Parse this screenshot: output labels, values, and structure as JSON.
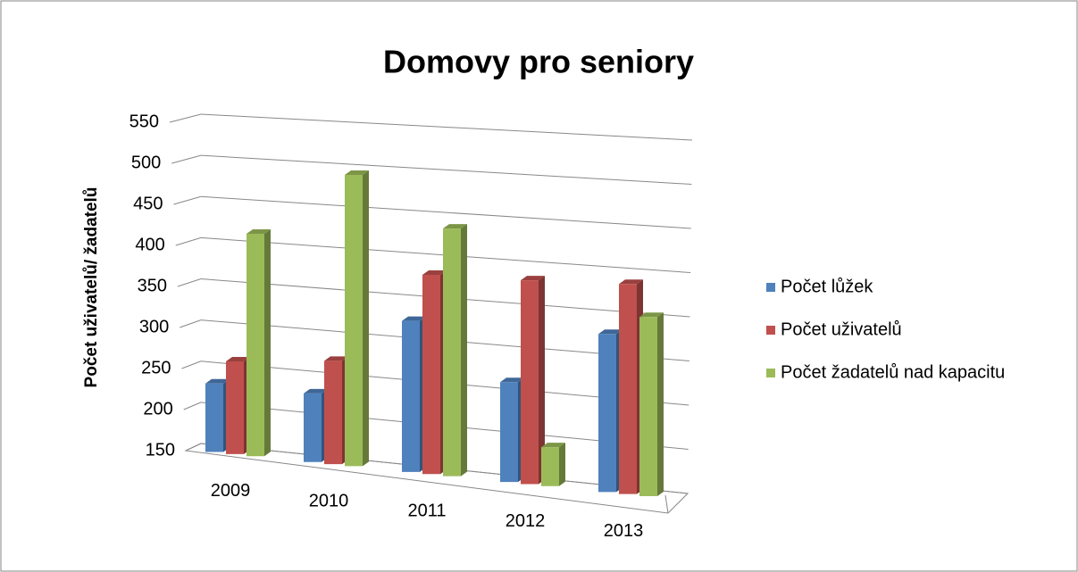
{
  "chart_data": {
    "type": "bar3d",
    "title": "Domovy pro seniory",
    "y_label": "Počet uživatelů/ žadatelů",
    "categories": [
      "2009",
      "2010",
      "2011",
      "2012",
      "2013"
    ],
    "series": [
      {
        "name": "Počet lůžek",
        "color": "#4f81bd",
        "values": [
          233,
          232,
          328,
          266,
          331
        ]
      },
      {
        "name": "Počet uživatelů",
        "color": "#c0504d",
        "values": [
          262,
          273,
          384,
          386,
          390
        ]
      },
      {
        "name": "Počet žadatelů nad kapacitu",
        "color": "#9bbb59",
        "values": [
          418,
          496,
          440,
          195,
          354
        ]
      }
    ],
    "ylim": [
      150,
      550
    ],
    "yticks": [
      150,
      200,
      250,
      300,
      350,
      400,
      450,
      500,
      550
    ],
    "grid": true,
    "legend": "right"
  }
}
